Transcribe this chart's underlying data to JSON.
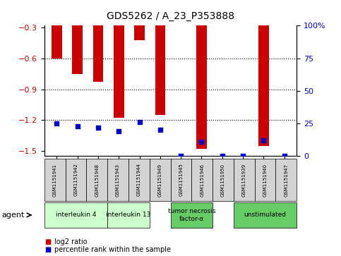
{
  "title": "GDS5262 / A_23_P353888",
  "samples": [
    "GSM1151941",
    "GSM1151942",
    "GSM1151948",
    "GSM1151943",
    "GSM1151944",
    "GSM1151949",
    "GSM1151945",
    "GSM1151946",
    "GSM1151950",
    "GSM1151939",
    "GSM1151940",
    "GSM1151947"
  ],
  "log2_ratio": [
    -0.6,
    -0.75,
    -0.83,
    -1.18,
    -0.42,
    -1.15,
    0.0,
    -1.48,
    0.0,
    0.0,
    -1.45,
    0.0
  ],
  "percentile": [
    25,
    23,
    22,
    19,
    26,
    20,
    0,
    11,
    0,
    0,
    12,
    0
  ],
  "ylim_left": [
    -1.55,
    -0.28
  ],
  "ylim_right": [
    0,
    100
  ],
  "yticks_left": [
    -1.5,
    -1.2,
    -0.9,
    -0.6,
    -0.3
  ],
  "yticks_right": [
    0,
    25,
    50,
    75,
    100
  ],
  "bar_color": "#cc0000",
  "dot_color": "#0000cc",
  "bar_width": 0.5,
  "legend_labels": [
    "log2 ratio",
    "percentile rank within the sample"
  ],
  "legend_colors": [
    "#cc0000",
    "#0000cc"
  ],
  "right_axis_color": "#0000cc",
  "left_axis_color": "#cc0000",
  "grid_yticks": [
    -1.2,
    -0.9,
    -0.6
  ],
  "background_color": "#ffffff",
  "plot_bg_color": "#ffffff",
  "sample_box_color": "#d3d3d3",
  "group_info": [
    {
      "label": "interleukin 4",
      "start": 0,
      "end": 2,
      "color": "#ccffcc"
    },
    {
      "label": "interleukin 13",
      "start": 3,
      "end": 4,
      "color": "#ccffcc"
    },
    {
      "label": "tumor necrosis\nfactor-α",
      "start": 6,
      "end": 7,
      "color": "#66cc66"
    },
    {
      "label": "unstimulated",
      "start": 9,
      "end": 11,
      "color": "#66cc66"
    }
  ]
}
